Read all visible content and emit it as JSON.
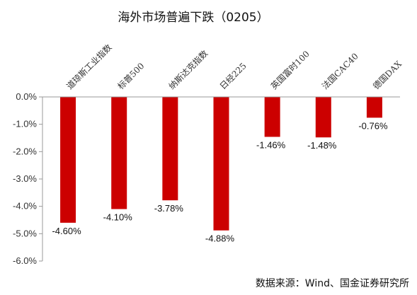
{
  "chart_data": {
    "type": "bar",
    "title": "海外市场普遍下跌（0205）",
    "categories": [
      "道琼斯工业指数",
      "标普500",
      "纳斯达克指数",
      "日经225",
      "英国富时100",
      "法国CAC40",
      "德国DAX"
    ],
    "values": [
      -4.6,
      -4.1,
      -3.78,
      -4.88,
      -1.46,
      -1.48,
      -0.76
    ],
    "data_labels": [
      "-4.60%",
      "-4.10%",
      "-3.78%",
      "-4.88%",
      "-1.46%",
      "-1.48%",
      "-0.76%"
    ],
    "y_ticks": [
      0,
      -1,
      -2,
      -3,
      -4,
      -5,
      -6
    ],
    "y_tick_labels": [
      "0.0%",
      "-1.0%",
      "-2.0%",
      "-3.0%",
      "-4.0%",
      "-5.0%",
      "-6.0%"
    ],
    "ylim": [
      -6,
      0
    ],
    "grid": false,
    "bar_color": "#cc0000",
    "axis_color": "#999999",
    "source": "数据来源：Wind、国金证券研究所"
  }
}
